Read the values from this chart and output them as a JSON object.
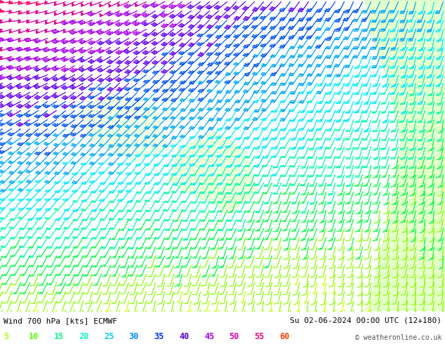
{
  "title_left": "Wind 700 hPa [kts] ECMWF",
  "title_right": "Su 02-06-2024 00:00 UTC (12+180)",
  "copyright": "© weatheronline.co.uk",
  "legend_values": [
    5,
    10,
    15,
    20,
    25,
    30,
    35,
    40,
    45,
    50,
    55,
    60
  ],
  "legend_colors": [
    "#aaff00",
    "#55ff00",
    "#00ff88",
    "#00ffcc",
    "#00ccff",
    "#0088ff",
    "#0033ff",
    "#5500cc",
    "#aa00ff",
    "#dd00aa",
    "#ff0077",
    "#ff4400"
  ],
  "bg_color": "#ffffff",
  "fig_width": 6.34,
  "fig_height": 4.9,
  "dpi": 100,
  "speed_color_map": [
    [
      5,
      "#ccff00"
    ],
    [
      10,
      "#88ff00"
    ],
    [
      15,
      "#00ff44"
    ],
    [
      20,
      "#00ffaa"
    ],
    [
      25,
      "#00eeff"
    ],
    [
      30,
      "#00aaff"
    ],
    [
      35,
      "#0055ff"
    ],
    [
      40,
      "#6600ff"
    ],
    [
      45,
      "#aa00ee"
    ],
    [
      50,
      "#dd0099"
    ],
    [
      55,
      "#ff0066"
    ],
    [
      60,
      "#ff4400"
    ]
  ]
}
